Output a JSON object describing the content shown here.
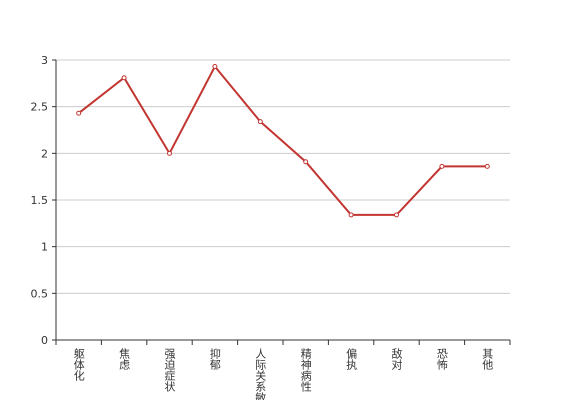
{
  "chart_data": {
    "type": "line",
    "categories": [
      "躯体化",
      "焦虑",
      "强迫症状",
      "抑郁",
      "人际关系敏感",
      "精神病性",
      "偏执",
      "敌对",
      "恐怖",
      "其他"
    ],
    "series": [
      {
        "color": "#c23531",
        "values": [
          2.43,
          2.81,
          2.0,
          2.93,
          2.34,
          1.91,
          1.34,
          1.34,
          1.86,
          1.86
        ]
      }
    ],
    "ylim": [
      0,
      3
    ],
    "yticks": [
      0,
      0.5,
      1,
      1.5,
      2,
      2.5,
      3
    ],
    "grid": true
  }
}
